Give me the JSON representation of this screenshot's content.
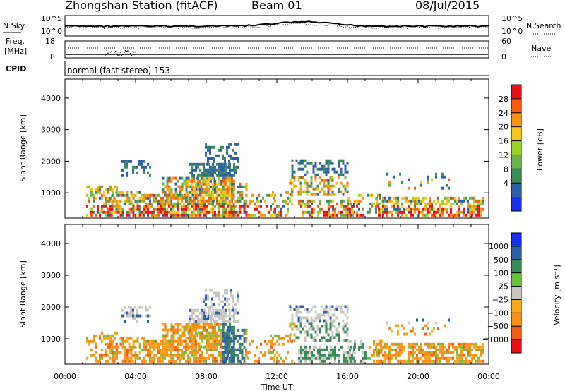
{
  "header": {
    "station": "Zhongshan Station (fitACF)",
    "beam": "Beam 01",
    "date": "08/Jul/2015"
  },
  "strips": {
    "nsky_label": "N.Sky",
    "nsearch_label": "N.Search",
    "noise_ticks": [
      "10^5",
      "10^0"
    ],
    "freq_label_top": "Freq.",
    "freq_label_unit": "[MHz]",
    "freq_ticks": [
      "18",
      "8"
    ],
    "nave_label": "Nave",
    "nave_ticks": [
      "60",
      "0"
    ],
    "cpid_label": "CPID",
    "cpid_text": "normal (fast stereo) 153"
  },
  "chart_data": [
    {
      "type": "heatmap",
      "name": "power",
      "ylabel": "Slant Range [km]",
      "yticks": [
        1000,
        2000,
        3000,
        4000
      ],
      "ylim": [
        200,
        4600
      ],
      "xlim": [
        0,
        24
      ],
      "colorbar": {
        "label": "Power [dB]",
        "ticks": [
          "28",
          "24",
          "20",
          "16",
          "12",
          "8",
          "4"
        ],
        "colors": [
          "#e8101a",
          "#f85a0e",
          "#f69216",
          "#f7c41c",
          "#9bd02a",
          "#6ab04e",
          "#3a8a5a",
          "#2e5ea6",
          "#1a2ef0"
        ]
      }
    },
    {
      "type": "heatmap",
      "name": "velocity",
      "ylabel": "Slant Range [km]",
      "yticks": [
        1000,
        2000,
        3000,
        4000
      ],
      "ylim": [
        200,
        4600
      ],
      "xlim": [
        0,
        24
      ],
      "xlabel": "Time UT",
      "xticks": [
        "00:00",
        "04:00",
        "08:00",
        "12:00",
        "16:00",
        "20:00",
        "00:00"
      ],
      "colorbar": {
        "label": "Velocity [m s⁻¹]",
        "ticks": [
          "1000",
          "500",
          "100",
          "25",
          "−25",
          "−100",
          "−500",
          "−1000"
        ],
        "colors": [
          "#1a2ef0",
          "#2e5ea6",
          "#3a8a5a",
          "#6cc040",
          "#c8c8c0",
          "#f7a81a",
          "#f6901a",
          "#f06014",
          "#e8101a"
        ]
      }
    }
  ]
}
